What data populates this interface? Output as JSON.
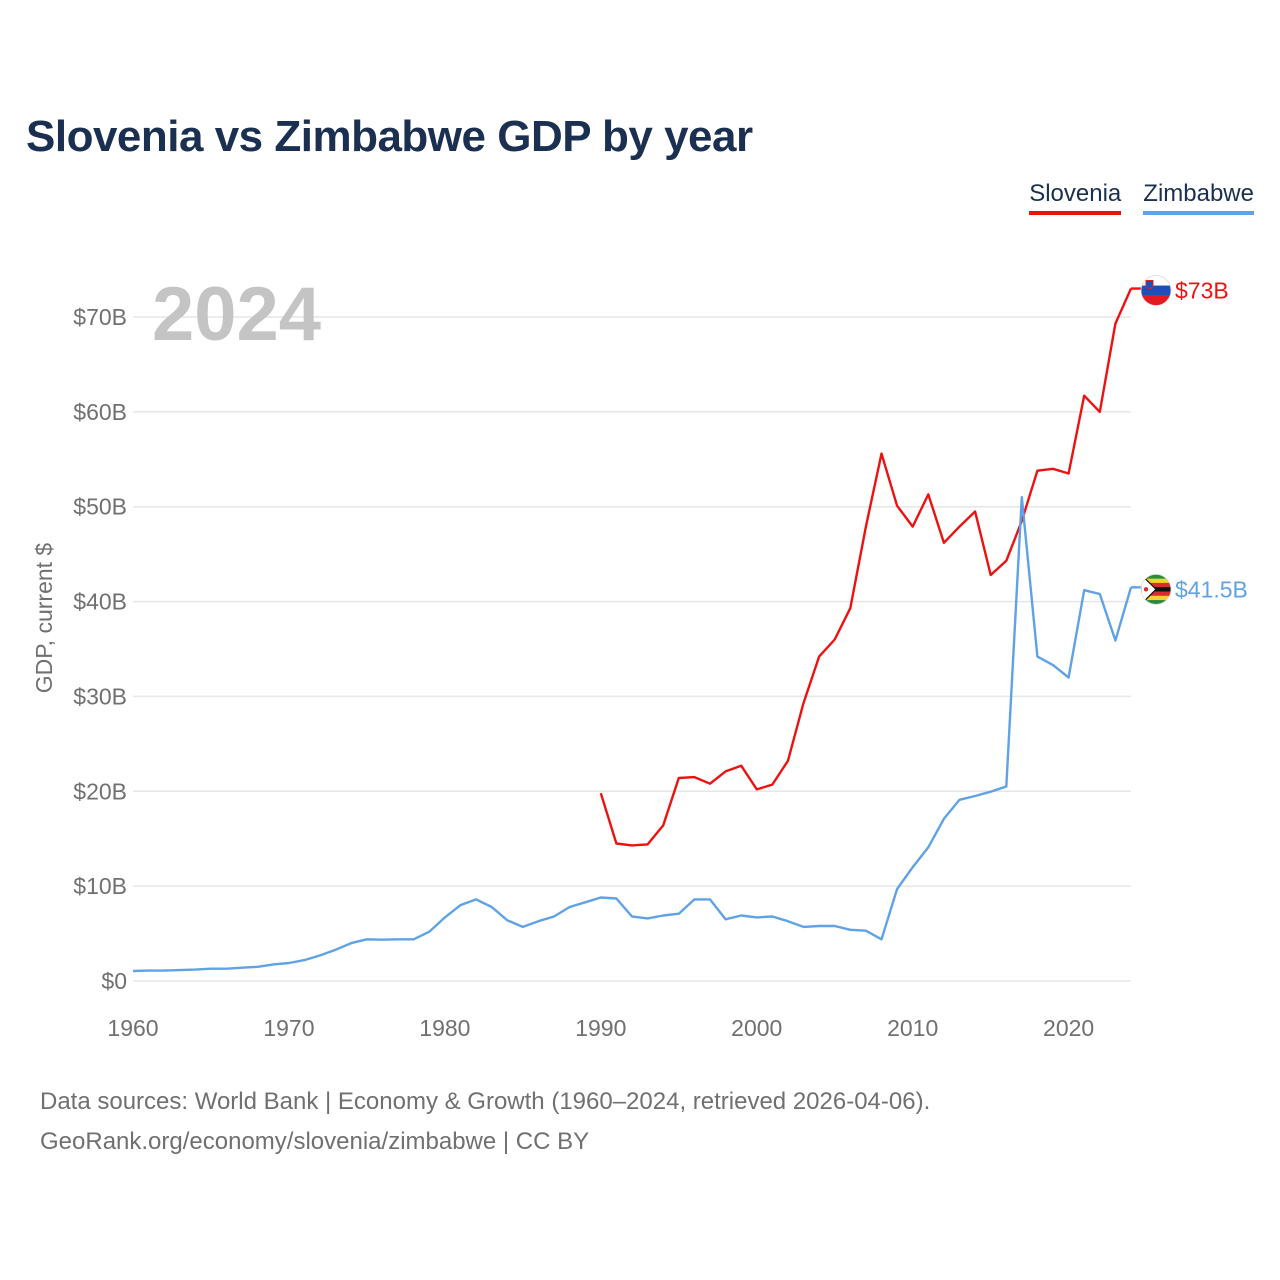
{
  "header": {
    "title": "Slovenia vs Zimbabwe GDP by year"
  },
  "legend": [
    {
      "name": "Slovenia",
      "color": "#ee1111"
    },
    {
      "name": "Zimbabwe",
      "color": "#5fa2e6"
    }
  ],
  "footer": {
    "source_line1": "Data sources: World Bank | Economy & Growth (1960–2024, retrieved 2026-04-06).",
    "source_line2": "GeoRank.org/economy/slovenia/zimbabwe | CC BY"
  },
  "chart_data": {
    "type": "line",
    "title": "Slovenia vs Zimbabwe GDP by year",
    "year_label": "2024",
    "ylabel": "GDP, current $",
    "xlabel": "",
    "xlim": [
      1960,
      2024
    ],
    "ylim": [
      0,
      70
    ],
    "unit": "billion current US$",
    "x_ticks": [
      1960,
      1970,
      1980,
      1990,
      2000,
      2010,
      2020
    ],
    "x_tick_labels": [
      "1960",
      "1970",
      "1980",
      "1990",
      "2000",
      "2010",
      "2020"
    ],
    "y_ticks": [
      0,
      10,
      20,
      30,
      40,
      50,
      60,
      70
    ],
    "y_tick_labels": [
      "$0",
      "$10B",
      "$20B",
      "$30B",
      "$40B",
      "$50B",
      "$60B",
      "$70B"
    ],
    "grid": true,
    "series": [
      {
        "name": "Slovenia",
        "color": "#ee1111",
        "end_label": "$73B",
        "flag": "slovenia-flag",
        "x": [
          1990,
          1991,
          1992,
          1993,
          1994,
          1995,
          1996,
          1997,
          1998,
          1999,
          2000,
          2001,
          2002,
          2003,
          2004,
          2005,
          2006,
          2007,
          2008,
          2009,
          2010,
          2011,
          2012,
          2013,
          2014,
          2015,
          2016,
          2017,
          2018,
          2019,
          2020,
          2021,
          2022,
          2023,
          2024
        ],
        "values": [
          19.8,
          14.5,
          14.3,
          14.4,
          16.4,
          21.4,
          21.5,
          20.8,
          22.1,
          22.7,
          20.2,
          20.7,
          23.2,
          29.3,
          34.2,
          36.0,
          39.3,
          47.9,
          55.6,
          50.1,
          47.9,
          51.3,
          46.2,
          47.9,
          49.5,
          42.8,
          44.3,
          48.5,
          53.8,
          54.0,
          53.5,
          61.7,
          60.0,
          69.3,
          73.0
        ]
      },
      {
        "name": "Zimbabwe",
        "color": "#5fa2e6",
        "end_label": "$41.5B",
        "flag": "zimbabwe-flag",
        "x": [
          1960,
          1961,
          1962,
          1963,
          1964,
          1965,
          1966,
          1967,
          1968,
          1969,
          1970,
          1971,
          1972,
          1973,
          1974,
          1975,
          1976,
          1977,
          1978,
          1979,
          1980,
          1981,
          1982,
          1983,
          1984,
          1985,
          1986,
          1987,
          1988,
          1989,
          1990,
          1991,
          1992,
          1993,
          1994,
          1995,
          1996,
          1997,
          1998,
          1999,
          2000,
          2001,
          2002,
          2003,
          2004,
          2005,
          2006,
          2007,
          2008,
          2009,
          2010,
          2011,
          2012,
          2013,
          2014,
          2015,
          2016,
          2017,
          2018,
          2019,
          2020,
          2021,
          2022,
          2023,
          2024
        ],
        "values": [
          1.05,
          1.1,
          1.1,
          1.15,
          1.2,
          1.3,
          1.3,
          1.4,
          1.5,
          1.75,
          1.9,
          2.2,
          2.7,
          3.3,
          4.0,
          4.4,
          4.35,
          4.4,
          4.4,
          5.2,
          6.7,
          8.0,
          8.6,
          7.8,
          6.4,
          5.7,
          6.3,
          6.8,
          7.8,
          8.3,
          8.8,
          8.7,
          6.8,
          6.6,
          6.9,
          7.1,
          8.6,
          8.6,
          6.5,
          6.9,
          6.7,
          6.8,
          6.3,
          5.7,
          5.8,
          5.8,
          5.4,
          5.3,
          4.4,
          9.7,
          12.0,
          14.1,
          17.1,
          19.1,
          19.5,
          19.96,
          20.5,
          51.0,
          34.2,
          33.3,
          32.0,
          41.2,
          40.8,
          35.9,
          41.5
        ]
      }
    ]
  }
}
